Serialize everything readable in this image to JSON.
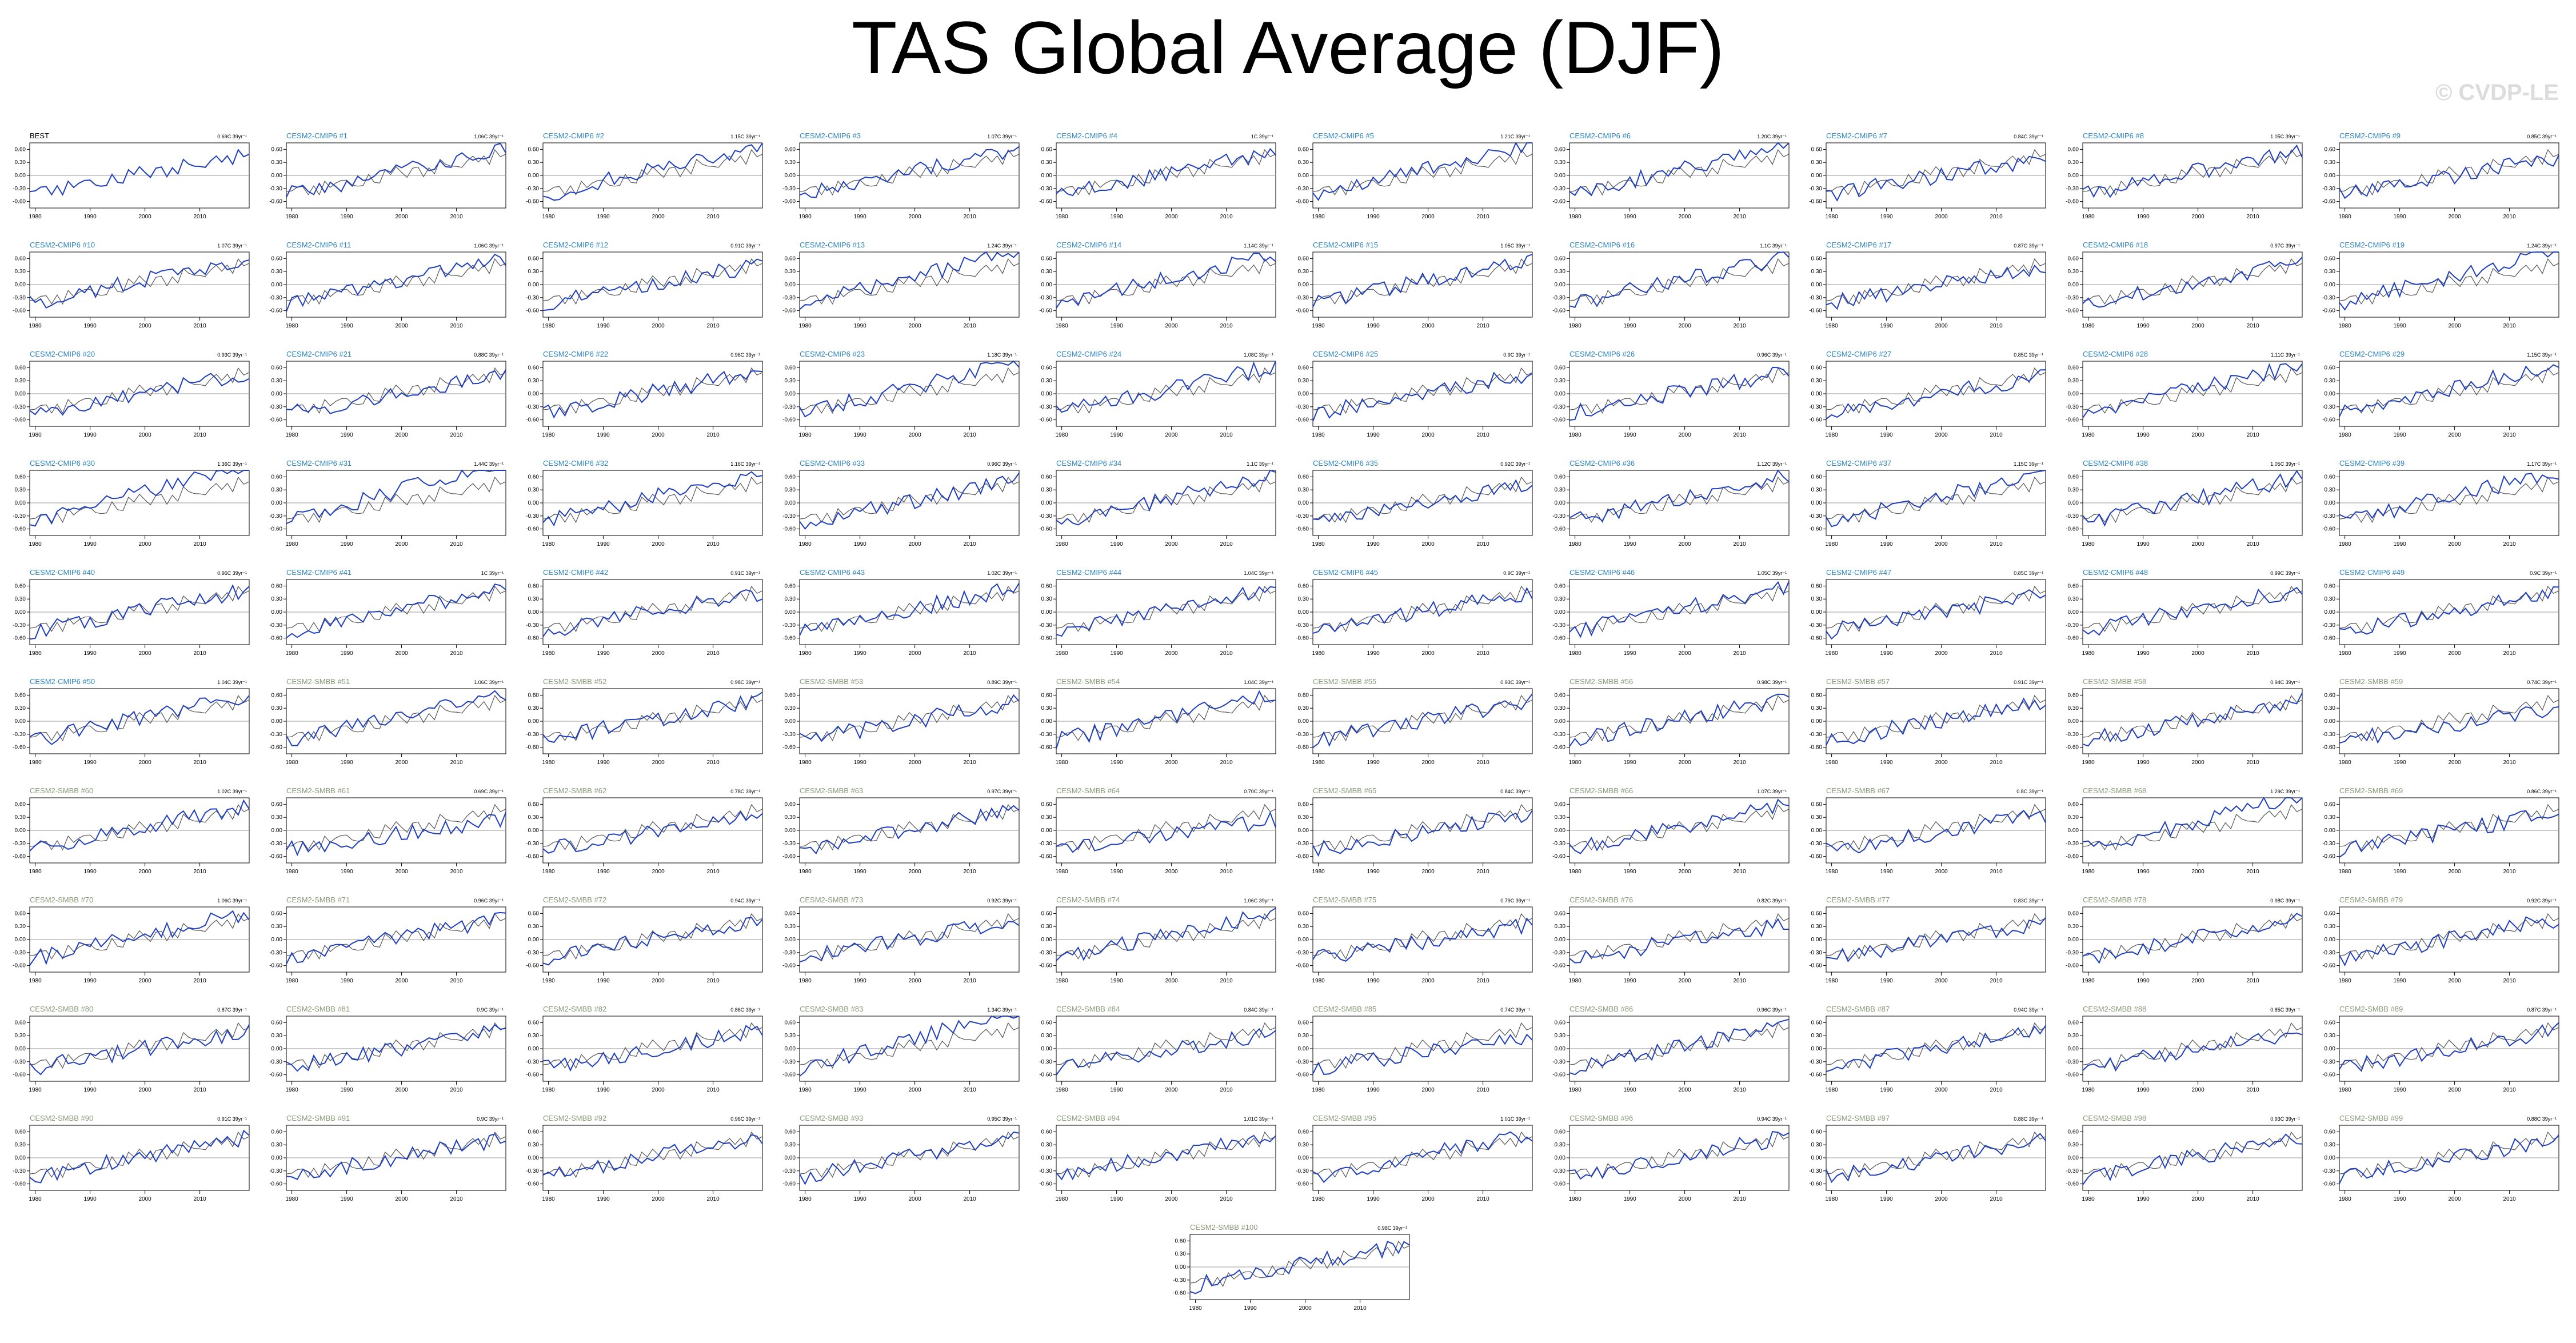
{
  "title": "TAS Global Average (DJF)",
  "watermark": "© CVDP-LE",
  "colors": {
    "obs_title": "#000000",
    "cmip6_title": "#2e86c1",
    "smbb_title": "#8a9a7a",
    "model_line": "#1f3fbf",
    "obs_line": "#555555",
    "zero_line": "#999999",
    "axis": "#000000"
  },
  "chart_data": {
    "type": "line",
    "layout": "10 columns x 10 rows + 1 centered panel",
    "x_ticks": [
      1980,
      1990,
      2000,
      2010
    ],
    "xlim": [
      1979,
      2019
    ],
    "ylim": [
      -0.75,
      0.75
    ],
    "y_ticks": [
      "0.60",
      "0.30",
      "0.00",
      "-0.30",
      "-0.60"
    ],
    "series_colors": {
      "model": "blue",
      "observations": "gray"
    },
    "panels": [
      {
        "title": "BEST",
        "trend": "0.69C 39yr⁻¹"
      },
      {
        "title": "CESM2-CMIP6 #1",
        "trend": "1.06C 39yr⁻¹"
      },
      {
        "title": "CESM2-CMIP6 #2",
        "trend": "1.15C 39yr⁻¹"
      },
      {
        "title": "CESM2-CMIP6 #3",
        "trend": "1.07C 39yr⁻¹"
      },
      {
        "title": "CESM2-CMIP6 #4",
        "trend": "1C 39yr⁻¹"
      },
      {
        "title": "CESM2-CMIP6 #5",
        "trend": "1.21C 39yr⁻¹"
      },
      {
        "title": "CESM2-CMIP6 #6",
        "trend": "1.20C 39yr⁻¹"
      },
      {
        "title": "CESM2-CMIP6 #7",
        "trend": "0.84C 39yr⁻¹"
      },
      {
        "title": "CESM2-CMIP6 #8",
        "trend": "1.05C 39yr⁻¹"
      },
      {
        "title": "CESM2-CMIP6 #9",
        "trend": "0.85C 39yr⁻¹"
      },
      {
        "title": "CESM2-CMIP6 #10",
        "trend": "1.07C 39yr⁻¹"
      },
      {
        "title": "CESM2-CMIP6 #11",
        "trend": "1.06C 39yr⁻¹"
      },
      {
        "title": "CESM2-CMIP6 #12",
        "trend": "0.91C 39yr⁻¹"
      },
      {
        "title": "CESM2-CMIP6 #13",
        "trend": "1.24C 39yr⁻¹"
      },
      {
        "title": "CESM2-CMIP6 #14",
        "trend": "1.14C 39yr⁻¹"
      },
      {
        "title": "CESM2-CMIP6 #15",
        "trend": "1.05C 39yr⁻¹"
      },
      {
        "title": "CESM2-CMIP6 #16",
        "trend": "1.1C 39yr⁻¹"
      },
      {
        "title": "CESM2-CMIP6 #17",
        "trend": "0.87C 39yr⁻¹"
      },
      {
        "title": "CESM2-CMIP6 #18",
        "trend": "0.97C 39yr⁻¹"
      },
      {
        "title": "CESM2-CMIP6 #19",
        "trend": "1.24C 39yr⁻¹"
      },
      {
        "title": "CESM2-CMIP6 #20",
        "trend": "0.93C 39yr⁻¹"
      },
      {
        "title": "CESM2-CMIP6 #21",
        "trend": "0.88C 39yr⁻¹"
      },
      {
        "title": "CESM2-CMIP6 #22",
        "trend": "0.96C 39yr⁻¹"
      },
      {
        "title": "CESM2-CMIP6 #23",
        "trend": "1.18C 39yr⁻¹"
      },
      {
        "title": "CESM2-CMIP6 #24",
        "trend": "1.08C 39yr⁻¹"
      },
      {
        "title": "CESM2-CMIP6 #25",
        "trend": "0.9C 39yr⁻¹"
      },
      {
        "title": "CESM2-CMIP6 #26",
        "trend": "0.96C 39yr⁻¹"
      },
      {
        "title": "CESM2-CMIP6 #27",
        "trend": "0.85C 39yr⁻¹"
      },
      {
        "title": "CESM2-CMIP6 #28",
        "trend": "1.11C 39yr⁻¹"
      },
      {
        "title": "CESM2-CMIP6 #29",
        "trend": "1.15C 39yr⁻¹"
      },
      {
        "title": "CESM2-CMIP6 #30",
        "trend": "1.36C 39yr⁻¹"
      },
      {
        "title": "CESM2-CMIP6 #31",
        "trend": "1.44C 39yr⁻¹"
      },
      {
        "title": "CESM2-CMIP6 #32",
        "trend": "1.16C 39yr⁻¹"
      },
      {
        "title": "CESM2-CMIP6 #33",
        "trend": "0.96C 39yr⁻¹"
      },
      {
        "title": "CESM2-CMIP6 #34",
        "trend": "1.1C 39yr⁻¹"
      },
      {
        "title": "CESM2-CMIP6 #35",
        "trend": "0.92C 39yr⁻¹"
      },
      {
        "title": "CESM2-CMIP6 #36",
        "trend": "1.12C 39yr⁻¹"
      },
      {
        "title": "CESM2-CMIP6 #37",
        "trend": "1.15C 39yr⁻¹"
      },
      {
        "title": "CESM2-CMIP6 #38",
        "trend": "1.05C 39yr⁻¹"
      },
      {
        "title": "CESM2-CMIP6 #39",
        "trend": "1.17C 39yr⁻¹"
      },
      {
        "title": "CESM2-CMIP6 #40",
        "trend": "0.96C 39yr⁻¹"
      },
      {
        "title": "CESM2-CMIP6 #41",
        "trend": "1C 39yr⁻¹"
      },
      {
        "title": "CESM2-CMIP6 #42",
        "trend": "0.91C 39yr⁻¹"
      },
      {
        "title": "CESM2-CMIP6 #43",
        "trend": "1.02C 39yr⁻¹"
      },
      {
        "title": "CESM2-CMIP6 #44",
        "trend": "1.04C 39yr⁻¹"
      },
      {
        "title": "CESM2-CMIP6 #45",
        "trend": "0.9C 39yr⁻¹"
      },
      {
        "title": "CESM2-CMIP6 #46",
        "trend": "1.05C 39yr⁻¹"
      },
      {
        "title": "CESM2-CMIP6 #47",
        "trend": "0.85C 39yr⁻¹"
      },
      {
        "title": "CESM2-CMIP6 #48",
        "trend": "0.99C 39yr⁻¹"
      },
      {
        "title": "CESM2-CMIP6 #49",
        "trend": "0.9C 39yr⁻¹"
      },
      {
        "title": "CESM2-CMIP6 #50",
        "trend": "1.04C 39yr⁻¹"
      },
      {
        "title": "CESM2-SMBB #51",
        "trend": "1.06C 39yr⁻¹"
      },
      {
        "title": "CESM2-SMBB #52",
        "trend": "0.98C 39yr⁻¹"
      },
      {
        "title": "CESM2-SMBB #53",
        "trend": "0.89C 39yr⁻¹"
      },
      {
        "title": "CESM2-SMBB #54",
        "trend": "1.04C 39yr⁻¹"
      },
      {
        "title": "CESM2-SMBB #55",
        "trend": "0.93C 39yr⁻¹"
      },
      {
        "title": "CESM2-SMBB #56",
        "trend": "0.98C 39yr⁻¹"
      },
      {
        "title": "CESM2-SMBB #57",
        "trend": "0.91C 39yr⁻¹"
      },
      {
        "title": "CESM2-SMBB #58",
        "trend": "0.94C 39yr⁻¹"
      },
      {
        "title": "CESM2-SMBB #59",
        "trend": "0.74C 39yr⁻¹"
      },
      {
        "title": "CESM2-SMBB #60",
        "trend": "1.02C 39yr⁻¹"
      },
      {
        "title": "CESM2-SMBB #61",
        "trend": "0.69C 39yr⁻¹"
      },
      {
        "title": "CESM2-SMBB #62",
        "trend": "0.78C 39yr⁻¹"
      },
      {
        "title": "CESM2-SMBB #63",
        "trend": "0.97C 39yr⁻¹"
      },
      {
        "title": "CESM2-SMBB #64",
        "trend": "0.70C 39yr⁻¹"
      },
      {
        "title": "CESM2-SMBB #65",
        "trend": "0.84C 39yr⁻¹"
      },
      {
        "title": "CESM2-SMBB #66",
        "trend": "1.07C 39yr⁻¹"
      },
      {
        "title": "CESM2-SMBB #67",
        "trend": "0.8C 39yr⁻¹"
      },
      {
        "title": "CESM2-SMBB #68",
        "trend": "1.29C 39yr⁻¹"
      },
      {
        "title": "CESM2-SMBB #69",
        "trend": "0.86C 39yr⁻¹"
      },
      {
        "title": "CESM2-SMBB #70",
        "trend": "1.06C 39yr⁻¹"
      },
      {
        "title": "CESM2-SMBB #71",
        "trend": "0.96C 39yr⁻¹"
      },
      {
        "title": "CESM2-SMBB #72",
        "trend": "0.94C 39yr⁻¹"
      },
      {
        "title": "CESM2-SMBB #73",
        "trend": "0.92C 39yr⁻¹"
      },
      {
        "title": "CESM2-SMBB #74",
        "trend": "1.06C 39yr⁻¹"
      },
      {
        "title": "CESM2-SMBB #75",
        "trend": "0.79C 39yr⁻¹"
      },
      {
        "title": "CESM2-SMBB #76",
        "trend": "0.82C 39yr⁻¹"
      },
      {
        "title": "CESM2-SMBB #77",
        "trend": "0.83C 39yr⁻¹"
      },
      {
        "title": "CESM2-SMBB #78",
        "trend": "0.98C 39yr⁻¹"
      },
      {
        "title": "CESM2-SMBB #79",
        "trend": "0.92C 39yr⁻¹"
      },
      {
        "title": "CESM2-SMBB #80",
        "trend": "0.87C 39yr⁻¹"
      },
      {
        "title": "CESM2-SMBB #81",
        "trend": "0.9C 39yr⁻¹"
      },
      {
        "title": "CESM2-SMBB #82",
        "trend": "0.86C 39yr⁻¹"
      },
      {
        "title": "CESM2-SMBB #83",
        "trend": "1.34C 39yr⁻¹"
      },
      {
        "title": "CESM2-SMBB #84",
        "trend": "0.84C 39yr⁻¹"
      },
      {
        "title": "CESM2-SMBB #85",
        "trend": "0.74C 39yr⁻¹"
      },
      {
        "title": "CESM2-SMBB #86",
        "trend": "0.96C 39yr⁻¹"
      },
      {
        "title": "CESM2-SMBB #87",
        "trend": "0.94C 39yr⁻¹"
      },
      {
        "title": "CESM2-SMBB #88",
        "trend": "0.85C 39yr⁻¹"
      },
      {
        "title": "CESM2-SMBB #89",
        "trend": "0.87C 39yr⁻¹"
      },
      {
        "title": "CESM2-SMBB #90",
        "trend": "0.91C 39yr⁻¹"
      },
      {
        "title": "CESM2-SMBB #91",
        "trend": "0.9C 39yr⁻¹"
      },
      {
        "title": "CESM2-SMBB #92",
        "trend": "0.96C 39yr⁻¹"
      },
      {
        "title": "CESM2-SMBB #93",
        "trend": "0.95C 39yr⁻¹"
      },
      {
        "title": "CESM2-SMBB #94",
        "trend": "1.01C 39yr⁻¹"
      },
      {
        "title": "CESM2-SMBB #95",
        "trend": "1.01C 39yr⁻¹"
      },
      {
        "title": "CESM2-SMBB #96",
        "trend": "0.94C 39yr⁻¹"
      },
      {
        "title": "CESM2-SMBB #97",
        "trend": "0.88C 39yr⁻¹"
      },
      {
        "title": "CESM2-SMBB #98",
        "trend": "0.93C 39yr⁻¹"
      },
      {
        "title": "CESM2-SMBB #99",
        "trend": "0.88C 39yr⁻¹"
      },
      {
        "title": "CESM2-SMBB #100",
        "trend": "0.98C 39yr⁻¹"
      }
    ]
  }
}
